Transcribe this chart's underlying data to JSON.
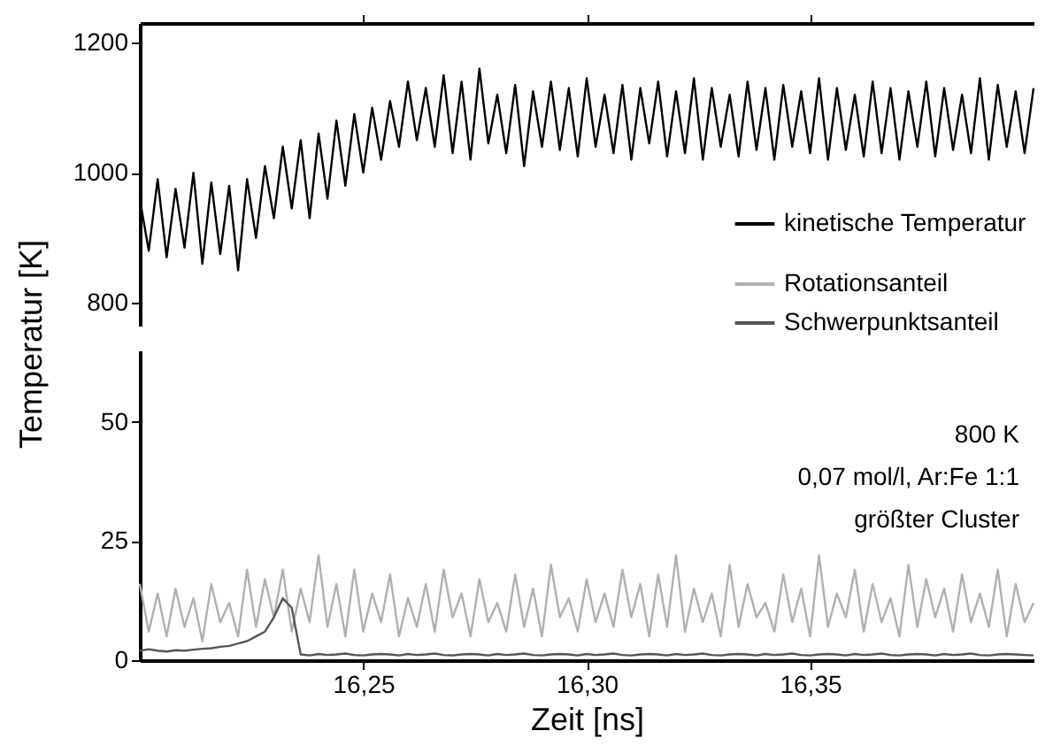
{
  "chart_data": [
    {
      "type": "line",
      "ylabel": "Temperatur [K]",
      "xlim": [
        16.2,
        16.4
      ],
      "ylim": [
        765,
        1230
      ],
      "yticks": [
        800,
        1000,
        1200
      ],
      "xticks": [
        {
          "value": 16.25,
          "label": null
        },
        {
          "value": 16.3,
          "label": null
        },
        {
          "value": 16.35,
          "label": null
        }
      ],
      "tick_labels": "y",
      "legend": "bottom right",
      "grid": false,
      "marker": "none",
      "line_style": "solid",
      "x": [
        16.2,
        16.202,
        16.204,
        16.206,
        16.208,
        16.21,
        16.212,
        16.214,
        16.216,
        16.218,
        16.22,
        16.222,
        16.224,
        16.226,
        16.228,
        16.23,
        16.232,
        16.234,
        16.236,
        16.238,
        16.24,
        16.242,
        16.244,
        16.246,
        16.248,
        16.25,
        16.252,
        16.254,
        16.256,
        16.258,
        16.26,
        16.262,
        16.264,
        16.266,
        16.268,
        16.27,
        16.272,
        16.274,
        16.276,
        16.278,
        16.28,
        16.282,
        16.284,
        16.286,
        16.288,
        16.29,
        16.292,
        16.294,
        16.296,
        16.298,
        16.3,
        16.302,
        16.304,
        16.306,
        16.308,
        16.31,
        16.312,
        16.314,
        16.316,
        16.318,
        16.32,
        16.322,
        16.324,
        16.326,
        16.328,
        16.33,
        16.332,
        16.334,
        16.336,
        16.338,
        16.34,
        16.342,
        16.344,
        16.346,
        16.348,
        16.35,
        16.352,
        16.354,
        16.356,
        16.358,
        16.36,
        16.362,
        16.364,
        16.366,
        16.368,
        16.37,
        16.372,
        16.374,
        16.376,
        16.378,
        16.38,
        16.382,
        16.384,
        16.386,
        16.388,
        16.39,
        16.392,
        16.394,
        16.396,
        16.398,
        16.4
      ],
      "series": [
        {
          "name": "kinetische Temperatur",
          "color": "#000000",
          "values": [
            960,
            880,
            990,
            870,
            975,
            885,
            1000,
            860,
            985,
            875,
            980,
            850,
            990,
            900,
            1010,
            930,
            1040,
            945,
            1050,
            930,
            1060,
            960,
            1080,
            980,
            1090,
            1000,
            1100,
            1020,
            1110,
            1040,
            1140,
            1050,
            1130,
            1040,
            1150,
            1030,
            1140,
            1020,
            1160,
            1045,
            1120,
            1030,
            1135,
            1010,
            1125,
            1040,
            1140,
            1035,
            1130,
            1025,
            1145,
            1040,
            1120,
            1030,
            1135,
            1020,
            1130,
            1045,
            1140,
            1025,
            1125,
            1030,
            1145,
            1020,
            1130,
            1040,
            1120,
            1025,
            1140,
            1035,
            1130,
            1020,
            1135,
            1040,
            1125,
            1030,
            1145,
            1020,
            1130,
            1035,
            1120,
            1025,
            1140,
            1030,
            1130,
            1020,
            1125,
            1040,
            1140,
            1025,
            1130,
            1035,
            1120,
            1030,
            1145,
            1020,
            1135,
            1040,
            1125,
            1030,
            1130
          ]
        }
      ]
    },
    {
      "type": "line",
      "xlabel": "Zeit [ns]",
      "xlim": [
        16.2,
        16.4
      ],
      "ylim": [
        0,
        65
      ],
      "yticks": [
        0,
        25,
        50
      ],
      "xticks": [
        {
          "value": 16.25,
          "label": "16,25"
        },
        {
          "value": 16.3,
          "label": "16,30"
        },
        {
          "value": 16.35,
          "label": "16,35"
        }
      ],
      "grid": false,
      "marker": "none",
      "line_style": "solid",
      "legend": "top right",
      "annotations": [
        "800 K",
        "0,07 mol/l, Ar:Fe 1:1",
        "größter Cluster"
      ],
      "x": [
        16.2,
        16.202,
        16.204,
        16.206,
        16.208,
        16.21,
        16.212,
        16.214,
        16.216,
        16.218,
        16.22,
        16.222,
        16.224,
        16.226,
        16.228,
        16.23,
        16.232,
        16.234,
        16.236,
        16.238,
        16.24,
        16.242,
        16.244,
        16.246,
        16.248,
        16.25,
        16.252,
        16.254,
        16.256,
        16.258,
        16.26,
        16.262,
        16.264,
        16.266,
        16.268,
        16.27,
        16.272,
        16.274,
        16.276,
        16.278,
        16.28,
        16.282,
        16.284,
        16.286,
        16.288,
        16.29,
        16.292,
        16.294,
        16.296,
        16.298,
        16.3,
        16.302,
        16.304,
        16.306,
        16.308,
        16.31,
        16.312,
        16.314,
        16.316,
        16.318,
        16.32,
        16.322,
        16.324,
        16.326,
        16.328,
        16.33,
        16.332,
        16.334,
        16.336,
        16.338,
        16.34,
        16.342,
        16.344,
        16.346,
        16.348,
        16.35,
        16.352,
        16.354,
        16.356,
        16.358,
        16.36,
        16.362,
        16.364,
        16.366,
        16.368,
        16.37,
        16.372,
        16.374,
        16.376,
        16.378,
        16.38,
        16.382,
        16.384,
        16.386,
        16.388,
        16.39,
        16.392,
        16.394,
        16.396,
        16.398,
        16.4
      ],
      "series": [
        {
          "name": "Rotationsanteil",
          "color": "#b0b0b0",
          "values": [
            16,
            6,
            14,
            5,
            15,
            7,
            13,
            4,
            16,
            8,
            12,
            5,
            19,
            7,
            17,
            9,
            19,
            6,
            15,
            8,
            22,
            7,
            16,
            5,
            19,
            6,
            14,
            8,
            18,
            5,
            13,
            7,
            16,
            6,
            19,
            9,
            14,
            5,
            17,
            8,
            12,
            6,
            18,
            7,
            15,
            5,
            20,
            9,
            13,
            6,
            17,
            8,
            14,
            7,
            19,
            9,
            16,
            5,
            18,
            7,
            22,
            6,
            15,
            8,
            14,
            5,
            20,
            7,
            16,
            9,
            12,
            6,
            18,
            8,
            15,
            5,
            22,
            7,
            14,
            9,
            19,
            6,
            16,
            8,
            13,
            5,
            20,
            7,
            17,
            9,
            15,
            6,
            18,
            8,
            14,
            7,
            19,
            5,
            16,
            8,
            12
          ]
        },
        {
          "name": "Schwerpunktsanteil",
          "color": "#555555",
          "values": [
            2,
            2.3,
            2,
            1.8,
            2.1,
            2,
            2.2,
            2.4,
            2.5,
            2.8,
            3,
            3.5,
            4,
            5,
            6,
            9,
            13,
            11,
            1.2,
            1,
            1.3,
            1.1,
            1.2,
            1.4,
            1.1,
            1,
            1.2,
            1.3,
            1.2,
            1,
            1.3,
            1.1,
            1.2,
            1.4,
            1.1,
            1,
            1.2,
            1.3,
            1.2,
            1,
            1.3,
            1.1,
            1.2,
            1.4,
            1.1,
            1,
            1.2,
            1.3,
            1.2,
            1,
            1.3,
            1.1,
            1.2,
            1.4,
            1.1,
            1,
            1.2,
            1.3,
            1.2,
            1,
            1.3,
            1.1,
            1.2,
            1.4,
            1.1,
            1,
            1.2,
            1.3,
            1.2,
            1,
            1.3,
            1.1,
            1.2,
            1.4,
            1.1,
            1,
            1.2,
            1.3,
            1.2,
            1,
            1.3,
            1.1,
            1.2,
            1.4,
            1.1,
            1,
            1.2,
            1.3,
            1.2,
            1,
            1.3,
            1.1,
            1.2,
            1.4,
            1.1,
            1,
            1.2,
            1.3,
            1.2,
            1.1,
            1
          ]
        }
      ]
    }
  ]
}
